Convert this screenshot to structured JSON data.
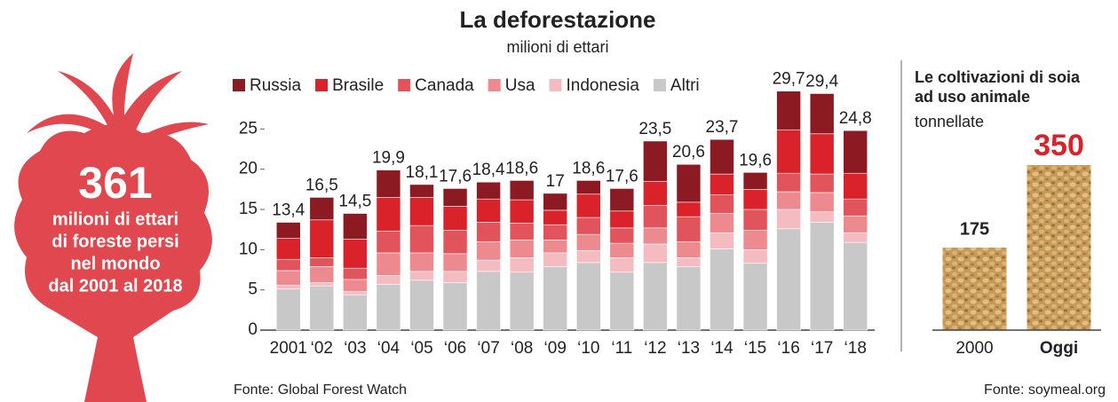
{
  "chart_data": [
    {
      "type": "bar",
      "stacked": true,
      "title": "La deforestazione",
      "subtitle": "milioni di ettari",
      "categories": [
        "2001",
        "‘02",
        "‘03",
        "‘04",
        "‘05",
        "‘06",
        "‘07",
        "‘08",
        "‘09",
        "‘10",
        "‘11",
        "‘12",
        "‘13",
        "‘14",
        "‘15",
        "‘16",
        "‘17",
        "‘18"
      ],
      "series": [
        {
          "name": "Altri",
          "color": "#c8c8c8",
          "values": [
            5.1,
            5.5,
            4.4,
            5.7,
            6.2,
            5.9,
            7.3,
            7.2,
            7.9,
            8.4,
            7.2,
            8.4,
            7.9,
            10.1,
            8.3,
            12.6,
            13.4,
            10.9
          ]
        },
        {
          "name": "Indonesia",
          "color": "#f4bcc0",
          "values": [
            0.5,
            0.4,
            0.4,
            1.1,
            1.1,
            1.4,
            1.4,
            1.8,
            1.7,
            1.5,
            1.8,
            2.3,
            1.1,
            2.0,
            1.7,
            2.4,
            1.3,
            1.2
          ]
        },
        {
          "name": "Usa",
          "color": "#ec8a90",
          "values": [
            1.8,
            2.0,
            1.5,
            2.8,
            2.3,
            2.2,
            2.3,
            2.2,
            1.6,
            2.0,
            1.8,
            2.0,
            2.0,
            2.4,
            2.4,
            2.2,
            2.4,
            2.1
          ]
        },
        {
          "name": "Canada",
          "color": "#e2545b",
          "values": [
            1.4,
            1.1,
            1.4,
            2.7,
            3.4,
            2.9,
            2.4,
            2.1,
            1.9,
            2.1,
            1.9,
            2.8,
            3.1,
            2.3,
            2.6,
            2.3,
            2.3,
            2.1
          ]
        },
        {
          "name": "Brasile",
          "color": "#d9222a",
          "values": [
            2.6,
            4.7,
            3.6,
            4.2,
            3.5,
            3.0,
            2.9,
            2.9,
            1.8,
            2.9,
            2.1,
            3.0,
            1.8,
            2.6,
            2.5,
            5.4,
            5.0,
            3.2
          ]
        },
        {
          "name": "Russia",
          "color": "#8b1a22",
          "values": [
            2.0,
            2.8,
            3.2,
            3.4,
            1.6,
            2.2,
            2.1,
            2.4,
            2.1,
            1.7,
            2.8,
            5.0,
            4.7,
            4.3,
            2.1,
            4.8,
            5.0,
            5.3
          ]
        }
      ],
      "legend_order": [
        "Russia",
        "Brasile",
        "Canada",
        "Usa",
        "Indonesia",
        "Altri"
      ],
      "totals": [
        13.4,
        16.5,
        14.5,
        19.9,
        18.1,
        17.6,
        18.4,
        18.6,
        17,
        18.6,
        17.6,
        23.5,
        20.6,
        23.7,
        19.6,
        29.7,
        29.4,
        24.8
      ],
      "total_labels": [
        "13,4",
        "16,5",
        "14,5",
        "19,9",
        "18,1",
        "17,6",
        "18,4",
        "18,6",
        "17",
        "18,6",
        "17,6",
        "23,5",
        "20,6",
        "23,7",
        "19,6",
        "29,7",
        "29,4",
        "24,8"
      ],
      "ylim": [
        0,
        30
      ],
      "yticks": [
        0,
        5,
        10,
        15,
        20,
        25
      ],
      "grid": false,
      "source": "Fonte: Global Forest Watch"
    },
    {
      "type": "bar",
      "title": "Le coltivazioni di soia ad uso animale",
      "subtitle": "tonnellate",
      "categories": [
        "2000",
        "Oggi"
      ],
      "values": [
        175,
        350
      ],
      "value_colors": [
        "#222222",
        "#d9222a"
      ],
      "source": "Fonte: soymeal.org"
    }
  ],
  "callout": {
    "number": "361",
    "lines": [
      "milioni di ettari",
      "di foreste persi",
      "nel mondo",
      "dal 2001 al 2018"
    ]
  }
}
